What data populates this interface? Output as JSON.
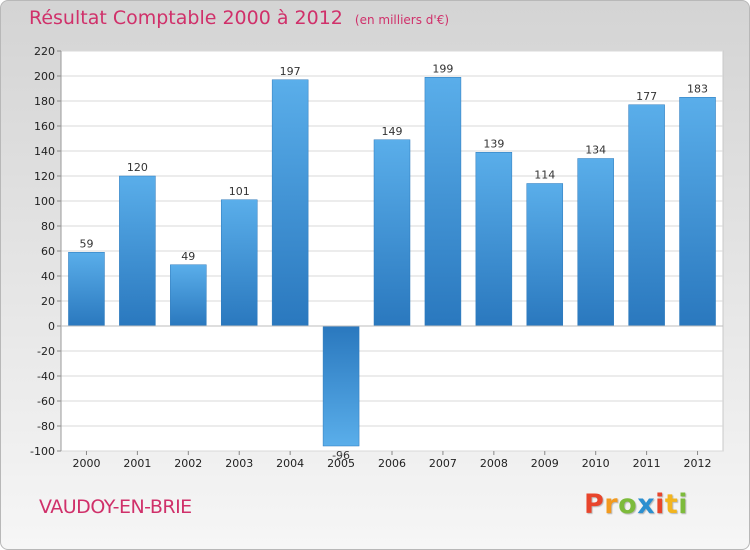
{
  "chart_data": {
    "type": "bar",
    "title": "Résultat Comptable 2000 à 2012",
    "subtitle": "(en milliers d'€)",
    "categories": [
      "2000",
      "2001",
      "2002",
      "2003",
      "2004",
      "2005",
      "2006",
      "2007",
      "2008",
      "2009",
      "2010",
      "2011",
      "2012"
    ],
    "values": [
      59,
      120,
      49,
      101,
      197,
      -96,
      149,
      199,
      139,
      114,
      134,
      177,
      183
    ],
    "ylim": [
      -100,
      220
    ],
    "yticks": [
      -100,
      -80,
      -60,
      -40,
      -20,
      0,
      20,
      40,
      60,
      80,
      100,
      120,
      140,
      160,
      180,
      200,
      220
    ],
    "grid": true,
    "xlabel": "",
    "ylabel": "",
    "bar_color": "#3a8fd6"
  },
  "footer": {
    "city": "VAUDOY-EN-BRIE",
    "logo_letters": [
      "P",
      "r",
      "o",
      "x",
      "i",
      "t",
      "i"
    ],
    "logo_colors": [
      "#e8452c",
      "#f29a1f",
      "#7dbb3b",
      "#2b8fd0",
      "#e8452c",
      "#f2b51f",
      "#7dbb3b"
    ]
  }
}
